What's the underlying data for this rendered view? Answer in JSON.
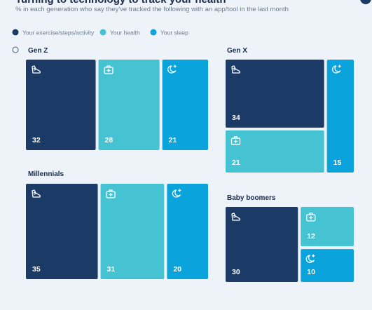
{
  "title": "Turning to technology to track your health",
  "subtitle": "% in each generation who say they've tracked the following with an app/tool in the last month",
  "legend": [
    {
      "name": "Your exercise/steps/activity",
      "color": "#1b3a66"
    },
    {
      "name": "Your health",
      "color": "#45c3d2"
    },
    {
      "name": "Your sleep",
      "color": "#0aa3dc"
    }
  ],
  "chart_data": [
    {
      "type": "treemap",
      "title": "Gen Z",
      "values": [
        32,
        28,
        21
      ]
    },
    {
      "type": "treemap",
      "title": "Millennials",
      "values": [
        35,
        31,
        20
      ]
    },
    {
      "type": "treemap",
      "title": "Gen X",
      "values": [
        34,
        21,
        15
      ]
    },
    {
      "type": "treemap",
      "title": "Baby boomers",
      "values": [
        30,
        12,
        10
      ]
    }
  ]
}
